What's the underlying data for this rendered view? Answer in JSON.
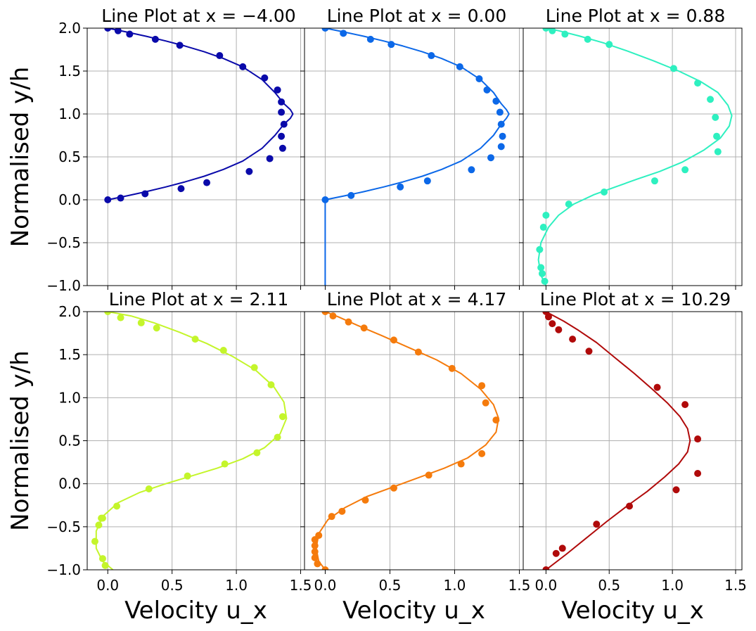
{
  "chart_data": [
    {
      "type": "line",
      "title": "Line Plot at x = −4.00",
      "ylabel": "Normalised y/h",
      "xlabel": "",
      "xlim": [
        -0.16,
        1.53
      ],
      "ylim": [
        -1.0,
        2.0
      ],
      "xticks": [
        "0.0",
        "0.5",
        "1.0",
        "1.5"
      ],
      "yticks": [
        "−1.0",
        "−0.5",
        "0.0",
        "0.5",
        "1.0",
        "1.5",
        "2.0"
      ],
      "grid": true,
      "color": "#0a0aaa",
      "series": [
        {
          "kind": "line",
          "x": [
            0.0,
            0.15,
            0.3,
            0.45,
            0.6,
            0.75,
            0.9,
            1.05,
            1.2,
            1.3,
            1.37,
            1.42,
            1.44,
            1.42,
            1.37,
            1.3,
            1.2,
            1.05,
            0.9,
            0.75,
            0.6,
            0.45,
            0.3,
            0.15,
            0.0
          ],
          "y": [
            0.0,
            0.046,
            0.095,
            0.149,
            0.208,
            0.275,
            0.354,
            0.452,
            0.6,
            0.75,
            0.88,
            0.95,
            1.0,
            1.05,
            1.12,
            1.25,
            1.4,
            1.548,
            1.646,
            1.725,
            1.792,
            1.851,
            1.905,
            1.954,
            2.0
          ]
        },
        {
          "kind": "points",
          "x": [
            0.0,
            0.1,
            0.29,
            0.57,
            0.77,
            1.1,
            1.26,
            1.36,
            1.35,
            1.37,
            1.35,
            1.35,
            1.32,
            1.22,
            1.05,
            0.87,
            0.56,
            0.37,
            0.17,
            0.08,
            0.0
          ],
          "y": [
            0.0,
            0.02,
            0.07,
            0.13,
            0.2,
            0.33,
            0.48,
            0.6,
            0.74,
            0.88,
            1.02,
            1.14,
            1.28,
            1.42,
            1.55,
            1.68,
            1.8,
            1.87,
            1.93,
            1.97,
            2.0
          ]
        }
      ]
    },
    {
      "type": "line",
      "title": "Line Plot at x = 0.00",
      "xlabel": "",
      "ylabel": "",
      "xlim": [
        -0.16,
        1.53
      ],
      "ylim": [
        -1.0,
        2.0
      ],
      "grid": true,
      "color": "#0c68e8",
      "series": [
        {
          "kind": "line",
          "x": [
            0.0,
            0.0,
            0.15,
            0.3,
            0.45,
            0.6,
            0.75,
            0.9,
            1.05,
            1.2,
            1.3,
            1.36,
            1.4,
            1.42,
            1.4,
            1.36,
            1.3,
            1.2,
            1.05,
            0.9,
            0.75,
            0.6,
            0.45,
            0.3,
            0.15,
            0.0
          ],
          "y": [
            -1.0,
            0.0,
            0.046,
            0.095,
            0.149,
            0.208,
            0.275,
            0.354,
            0.452,
            0.6,
            0.75,
            0.88,
            0.95,
            1.0,
            1.05,
            1.12,
            1.25,
            1.4,
            1.548,
            1.646,
            1.725,
            1.792,
            1.851,
            1.905,
            1.954,
            2.0
          ]
        },
        {
          "kind": "points",
          "x": [
            0.0,
            0.2,
            0.58,
            0.79,
            1.13,
            1.28,
            1.36,
            1.37,
            1.36,
            1.35,
            1.32,
            1.25,
            1.19,
            1.04,
            0.82,
            0.51,
            0.35,
            0.14,
            0.0
          ],
          "y": [
            0.0,
            0.05,
            0.15,
            0.22,
            0.35,
            0.49,
            0.62,
            0.74,
            0.88,
            1.02,
            1.15,
            1.28,
            1.41,
            1.55,
            1.68,
            1.81,
            1.87,
            1.94,
            2.0
          ]
        }
      ]
    },
    {
      "type": "line",
      "title": "Line Plot at x = 0.88",
      "xlabel": "",
      "ylabel": "",
      "xlim": [
        -0.18,
        1.55
      ],
      "ylim": [
        -1.0,
        2.0
      ],
      "grid": true,
      "color": "#2ef0c0",
      "series": [
        {
          "kind": "line",
          "x": [
            0.0,
            -0.04,
            -0.06,
            -0.04,
            0.02,
            0.1,
            0.22,
            0.38,
            0.55,
            0.72,
            0.9,
            1.08,
            1.25,
            1.38,
            1.45,
            1.47,
            1.44,
            1.36,
            1.22,
            1.05,
            0.85,
            0.65,
            0.45,
            0.26,
            0.1,
            0.0
          ],
          "y": [
            -1.0,
            -0.88,
            -0.7,
            -0.5,
            -0.32,
            -0.18,
            -0.05,
            0.06,
            0.15,
            0.24,
            0.33,
            0.44,
            0.58,
            0.72,
            0.86,
            0.98,
            1.1,
            1.25,
            1.38,
            1.5,
            1.62,
            1.73,
            1.83,
            1.91,
            1.97,
            2.0
          ]
        },
        {
          "kind": "points",
          "x": [
            -0.01,
            -0.03,
            -0.04,
            -0.05,
            -0.02,
            0.0,
            0.18,
            0.46,
            0.86,
            1.1,
            1.36,
            1.35,
            1.34,
            1.3,
            1.2,
            1.01,
            0.5,
            0.33,
            0.15,
            0.05,
            0.0
          ],
          "y": [
            -0.95,
            -0.86,
            -0.79,
            -0.58,
            -0.32,
            -0.18,
            -0.05,
            0.09,
            0.22,
            0.35,
            0.56,
            0.74,
            0.96,
            1.17,
            1.36,
            1.53,
            1.81,
            1.87,
            1.93,
            1.97,
            2.0
          ]
        }
      ]
    },
    {
      "type": "line",
      "title": "Line Plot at x = 2.11",
      "xlabel": "Velocity u_x",
      "ylabel": "Normalised y/h",
      "xlim": [
        -0.16,
        1.53
      ],
      "ylim": [
        -1.0,
        2.0
      ],
      "grid": true,
      "color": "#c4f52b",
      "series": [
        {
          "kind": "line",
          "x": [
            0.04,
            -0.04,
            -0.09,
            -0.09,
            -0.04,
            0.08,
            0.25,
            0.45,
            0.65,
            0.85,
            1.05,
            1.22,
            1.34,
            1.39,
            1.37,
            1.29,
            1.15,
            0.97,
            0.77,
            0.56,
            0.36,
            0.18,
            0.0
          ],
          "y": [
            -1.0,
            -0.9,
            -0.75,
            -0.55,
            -0.38,
            -0.22,
            -0.1,
            0.0,
            0.09,
            0.18,
            0.29,
            0.42,
            0.58,
            0.76,
            0.95,
            1.13,
            1.32,
            1.48,
            1.63,
            1.76,
            1.87,
            1.95,
            2.0
          ]
        },
        {
          "kind": "points",
          "x": [
            -0.02,
            -0.04,
            -0.05,
            -0.1,
            -0.07,
            -0.04,
            0.07,
            0.32,
            0.62,
            0.91,
            1.16,
            1.32,
            1.36,
            1.27,
            1.14,
            0.9,
            0.68,
            0.38,
            0.26,
            0.1,
            0.0
          ],
          "y": [
            -0.95,
            -0.87,
            -0.4,
            -0.67,
            -0.48,
            -0.4,
            -0.26,
            -0.06,
            0.09,
            0.23,
            0.36,
            0.54,
            0.78,
            1.15,
            1.35,
            1.55,
            1.68,
            1.81,
            1.87,
            1.93,
            2.0
          ]
        }
      ]
    },
    {
      "type": "line",
      "title": "Line Plot at x = 4.17",
      "xlabel": "Velocity u_x",
      "ylabel": "",
      "xlim": [
        -0.16,
        1.53
      ],
      "ylim": [
        -1.0,
        2.0
      ],
      "grid": true,
      "color": "#f57b0c",
      "series": [
        {
          "kind": "line",
          "x": [
            0.0,
            -0.05,
            -0.07,
            -0.05,
            0.02,
            0.15,
            0.32,
            0.52,
            0.72,
            0.92,
            1.1,
            1.24,
            1.32,
            1.34,
            1.3,
            1.2,
            1.05,
            0.86,
            0.65,
            0.44,
            0.25,
            0.1,
            0.0
          ],
          "y": [
            -1.0,
            -0.9,
            -0.75,
            -0.58,
            -0.42,
            -0.28,
            -0.15,
            -0.04,
            0.07,
            0.18,
            0.3,
            0.45,
            0.6,
            0.76,
            0.92,
            1.1,
            1.28,
            1.44,
            1.58,
            1.72,
            1.84,
            1.94,
            2.0
          ]
        },
        {
          "kind": "points",
          "x": [
            0.0,
            -0.06,
            -0.08,
            -0.08,
            -0.08,
            -0.08,
            -0.05,
            0.05,
            0.13,
            0.31,
            0.53,
            0.8,
            1.05,
            1.21,
            1.32,
            1.24,
            1.21,
            0.98,
            0.72,
            0.53,
            0.3,
            0.18,
            0.06,
            0.0
          ],
          "y": [
            -1.0,
            -0.93,
            -0.86,
            -0.79,
            -0.72,
            -0.65,
            -0.6,
            -0.38,
            -0.32,
            -0.19,
            -0.05,
            0.1,
            0.23,
            0.35,
            0.74,
            0.94,
            1.14,
            1.34,
            1.53,
            1.67,
            1.81,
            1.88,
            1.95,
            2.0
          ]
        }
      ]
    },
    {
      "type": "line",
      "title": "Line Plot at x = 10.29",
      "xlabel": "Velocity u_x",
      "ylabel": "",
      "xlim": [
        -0.18,
        1.55
      ],
      "ylim": [
        -1.0,
        2.0
      ],
      "grid": true,
      "color": "#b00a0a",
      "series": [
        {
          "kind": "line",
          "x": [
            0.0,
            0.16,
            0.32,
            0.48,
            0.64,
            0.8,
            0.94,
            1.05,
            1.12,
            1.14,
            1.12,
            1.06,
            0.96,
            0.84,
            0.7,
            0.55,
            0.4,
            0.26,
            0.14,
            0.05,
            0.0
          ],
          "y": [
            -1.0,
            -0.82,
            -0.63,
            -0.44,
            -0.26,
            -0.09,
            0.08,
            0.23,
            0.37,
            0.5,
            0.64,
            0.78,
            0.94,
            1.1,
            1.28,
            1.46,
            1.64,
            1.78,
            1.89,
            1.96,
            2.0
          ]
        },
        {
          "kind": "points",
          "x": [
            0.0,
            0.08,
            0.13,
            0.4,
            0.66,
            1.03,
            1.2,
            1.2,
            1.1,
            0.88,
            0.34,
            0.21,
            0.1,
            0.05,
            0.02,
            0.0
          ],
          "y": [
            -1.0,
            -0.81,
            -0.75,
            -0.47,
            -0.26,
            -0.07,
            0.12,
            0.52,
            0.92,
            1.12,
            1.54,
            1.68,
            1.79,
            1.86,
            1.94,
            2.0
          ]
        }
      ]
    }
  ]
}
